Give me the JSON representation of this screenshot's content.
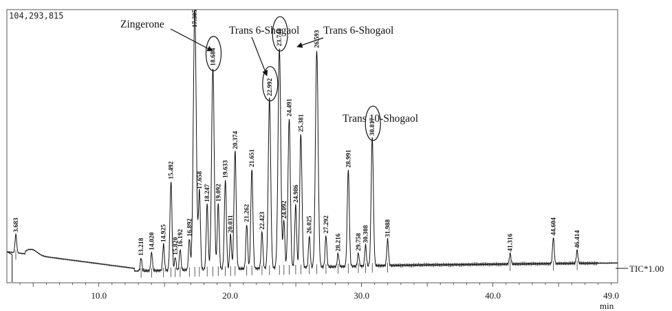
{
  "chart_data": {
    "type": "line",
    "y_max_label": "104,293,815",
    "x_unit": "min",
    "trace_label": "TIC*1.00",
    "xlim": [
      3.0,
      49.5
    ],
    "x_ticks": [
      "10.0",
      "20.0",
      "30.0",
      "40.0",
      "49.0"
    ],
    "x_tick_values": [
      10,
      20,
      30,
      40,
      49
    ],
    "peaks": [
      {
        "label": "3.683",
        "rt": 3.683,
        "height": 0.07
      },
      {
        "label": "13.218",
        "rt": 13.218,
        "height": 0.05
      },
      {
        "label": "14.020",
        "rt": 14.02,
        "height": 0.07
      },
      {
        "label": "14.925",
        "rt": 14.925,
        "height": 0.1
      },
      {
        "label": "15.492",
        "rt": 15.492,
        "height": 0.34
      },
      {
        "label": "15.820",
        "rt": 15.82,
        "height": 0.05
      },
      {
        "label": "16.192",
        "rt": 16.192,
        "height": 0.08
      },
      {
        "label": "16.892",
        "rt": 16.892,
        "height": 0.12
      },
      {
        "label": "17.305",
        "rt": 17.305,
        "height": 1.0
      },
      {
        "label": "17.658",
        "rt": 17.658,
        "height": 0.3
      },
      {
        "label": "18.247",
        "rt": 18.247,
        "height": 0.25
      },
      {
        "label": "18.684",
        "rt": 18.684,
        "height": 0.77
      },
      {
        "label": "19.092",
        "rt": 19.092,
        "height": 0.25
      },
      {
        "label": "19.633",
        "rt": 19.633,
        "height": 0.34
      },
      {
        "label": "20.031",
        "rt": 20.031,
        "height": 0.13
      },
      {
        "label": "20.374",
        "rt": 20.374,
        "height": 0.45
      },
      {
        "label": "21.262",
        "rt": 21.262,
        "height": 0.17
      },
      {
        "label": "21.651",
        "rt": 21.651,
        "height": 0.38
      },
      {
        "label": "22.423",
        "rt": 22.423,
        "height": 0.14
      },
      {
        "label": "22.992",
        "rt": 22.992,
        "height": 0.65
      },
      {
        "label": "23.748",
        "rt": 23.748,
        "height": 0.84
      },
      {
        "label": "24.092",
        "rt": 24.092,
        "height": 0.18
      },
      {
        "label": "24.491",
        "rt": 24.491,
        "height": 0.57
      },
      {
        "label": "24.986",
        "rt": 24.986,
        "height": 0.24
      },
      {
        "label": "25.381",
        "rt": 25.381,
        "height": 0.51
      },
      {
        "label": "26.025",
        "rt": 26.025,
        "height": 0.12
      },
      {
        "label": "26.593",
        "rt": 26.593,
        "height": 0.83
      },
      {
        "label": "27.292",
        "rt": 27.292,
        "height": 0.12
      },
      {
        "label": "28.216",
        "rt": 28.216,
        "height": 0.05
      },
      {
        "label": "28.991",
        "rt": 28.991,
        "height": 0.37
      },
      {
        "label": "29.758",
        "rt": 29.758,
        "height": 0.05
      },
      {
        "label": "30.308",
        "rt": 30.308,
        "height": 0.08
      },
      {
        "label": "30.817",
        "rt": 30.817,
        "height": 0.49
      },
      {
        "label": "31.988",
        "rt": 31.988,
        "height": 0.1
      },
      {
        "label": "41.316",
        "rt": 41.316,
        "height": 0.04
      },
      {
        "label": "44.604",
        "rt": 44.604,
        "height": 0.1
      },
      {
        "label": "46.414",
        "rt": 46.414,
        "height": 0.05
      }
    ],
    "circled_peaks": [
      "18.684",
      "22.992",
      "23.748",
      "30.817"
    ],
    "annotations": [
      {
        "text": "Zingerone",
        "points_to": "18.684"
      },
      {
        "text": "Trans 6-Shogaol",
        "points_to": "22.992"
      },
      {
        "text": "Trans 6-Shogaol",
        "points_to": "23.748"
      },
      {
        "text": "Trans 10-Shogaol",
        "points_to": "30.817"
      }
    ]
  }
}
